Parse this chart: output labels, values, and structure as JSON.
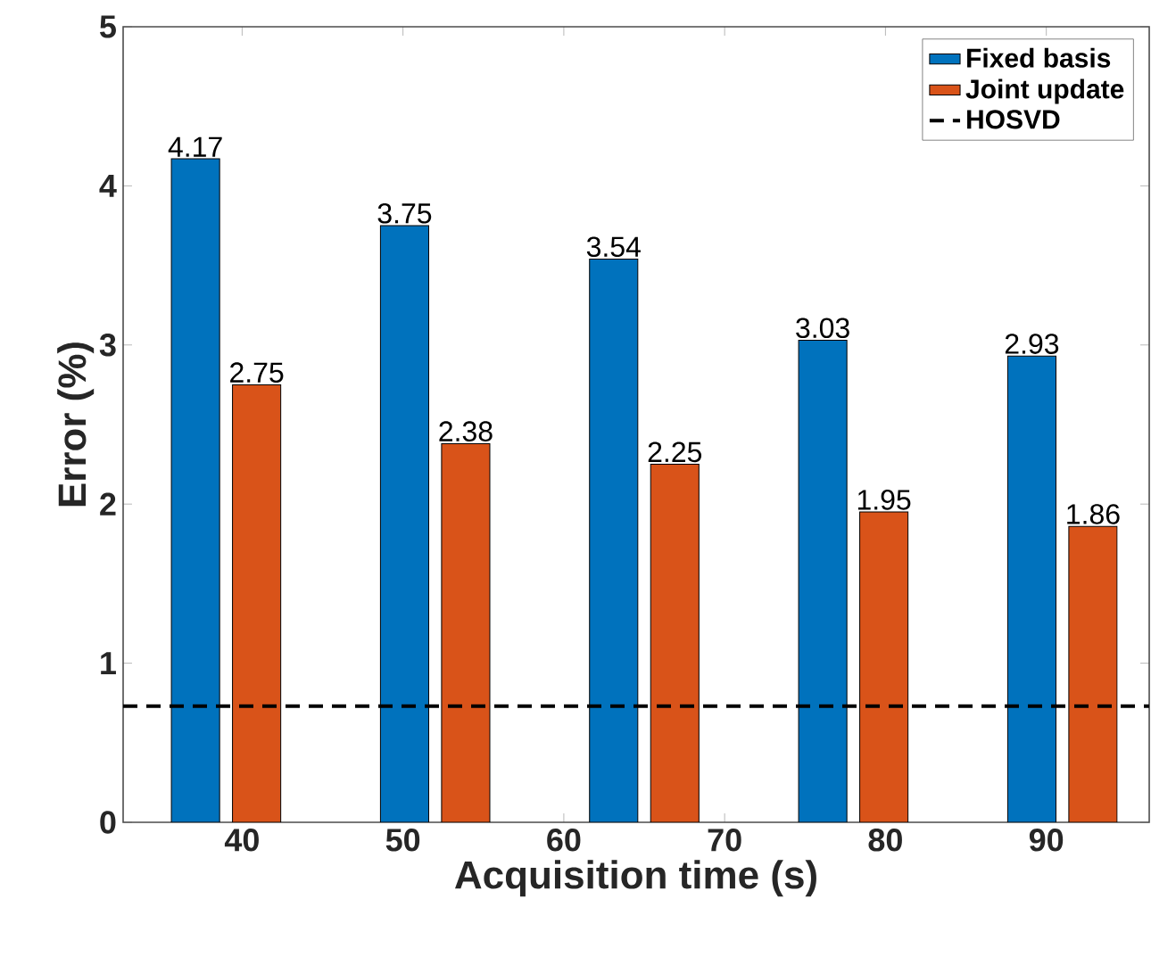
{
  "chart_data": {
    "type": "bar",
    "xlabel": "Acquisition time (s)",
    "ylabel": "Error (%)",
    "series": [
      {
        "name": "Fixed basis",
        "color": "#0072bd",
        "x": [
          37.1,
          50.1,
          63.1,
          76.1,
          89.1
        ],
        "values": [
          4.17,
          3.75,
          3.54,
          3.03,
          2.93
        ]
      },
      {
        "name": "Joint update",
        "color": "#d95319",
        "x": [
          40.9,
          53.9,
          66.9,
          79.9,
          92.9
        ],
        "values": [
          2.75,
          2.38,
          2.25,
          1.95,
          1.86
        ]
      }
    ],
    "ref_lines": [
      {
        "axis": "y",
        "value": 0.73,
        "label": "HOSVD",
        "color": "#000000",
        "line_style": "dashed"
      }
    ],
    "xlim": [
      32.6,
      96.4
    ],
    "ylim": [
      0,
      5
    ],
    "xticks": [
      40,
      50,
      60,
      70,
      80,
      90
    ],
    "yticks": [
      0,
      1,
      2,
      3,
      4,
      5
    ],
    "data_labels": true,
    "legend": "top right",
    "grid": false
  }
}
